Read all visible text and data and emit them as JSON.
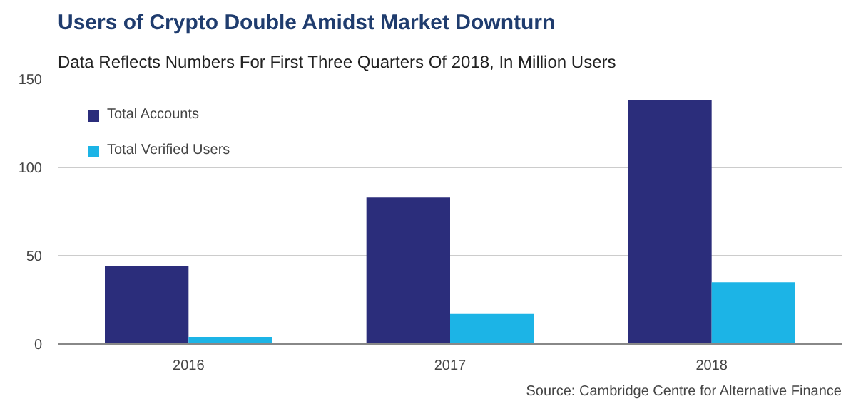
{
  "chart_data": {
    "type": "bar",
    "title": "Users of Crypto Double Amidst Market Downturn",
    "subtitle": "Data Reflects Numbers For First Three Quarters Of 2018, In Million Users",
    "categories": [
      "2016",
      "2017",
      "2018"
    ],
    "series": [
      {
        "name": "Total Accounts",
        "color": "#2b2d7b",
        "values": [
          44,
          83,
          138
        ]
      },
      {
        "name": "Total Verified Users",
        "color": "#1cb4e6",
        "values": [
          4,
          17,
          35
        ]
      }
    ],
    "ylim": [
      0,
      150
    ],
    "yticks": [
      0,
      50,
      100,
      150
    ],
    "grid": "y",
    "legend": "top left",
    "annotations": [
      "Source: Cambridge Centre for Alternative Finance"
    ]
  }
}
